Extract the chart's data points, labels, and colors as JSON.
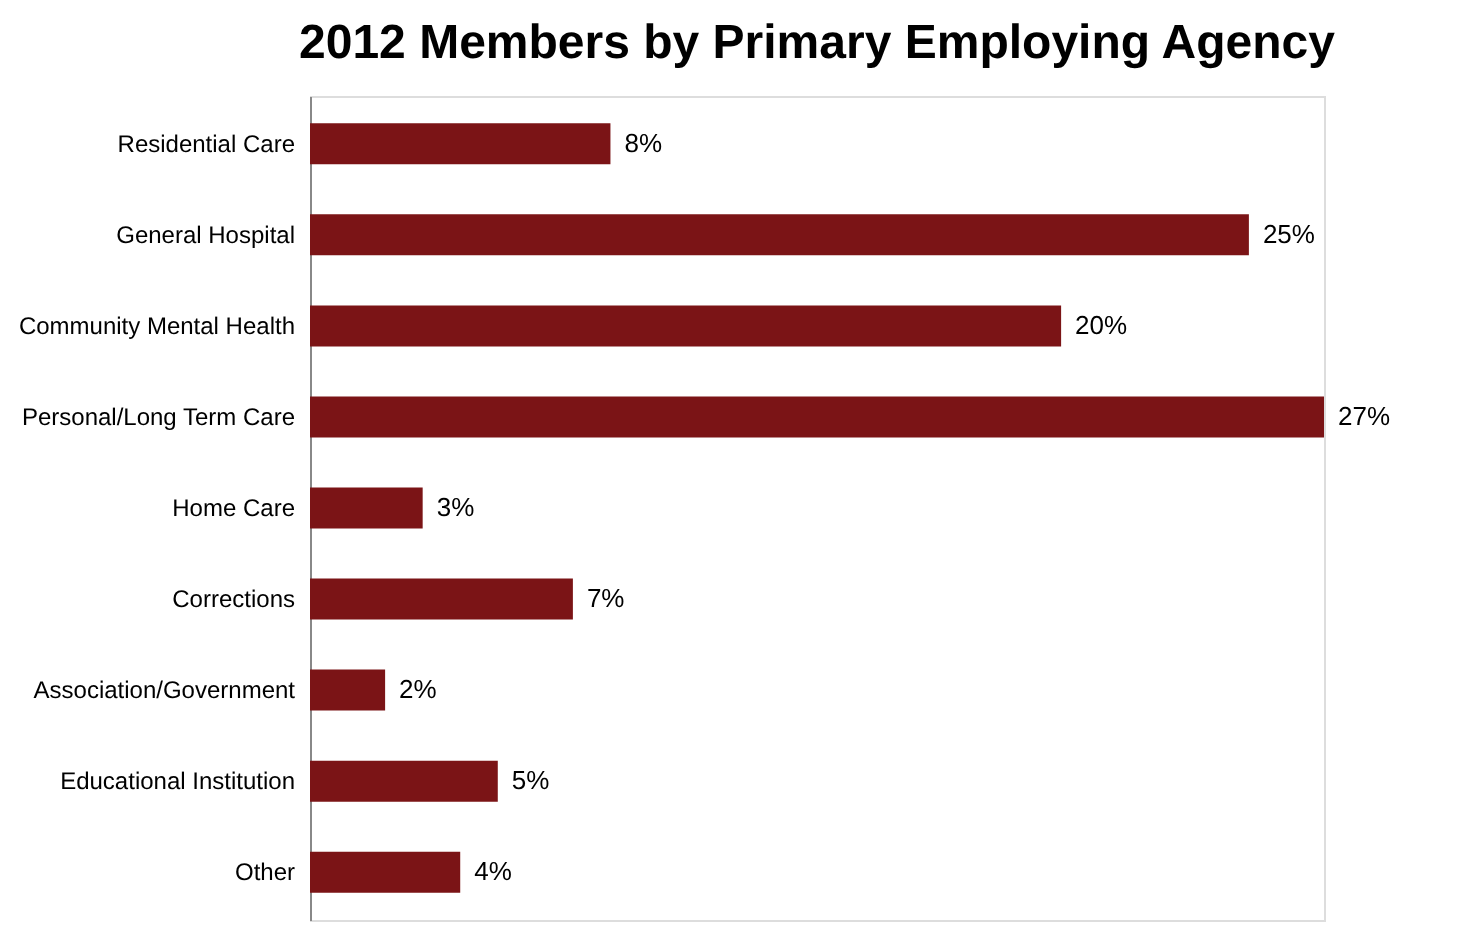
{
  "chart_data": {
    "type": "bar",
    "orientation": "horizontal",
    "title": "2012 Members by Primary Employing Agency",
    "categories": [
      "Residential Care",
      "General Hospital",
      "Community Mental Health",
      "Personal/Long Term Care",
      "Home Care",
      "Corrections",
      "Association/Government",
      "Educational Institution",
      "Other"
    ],
    "values": [
      8,
      25,
      20,
      27,
      3,
      7,
      2,
      5,
      4
    ],
    "value_labels": [
      "8%",
      "25%",
      "20%",
      "27%",
      "3%",
      "7%",
      "2%",
      "5%",
      "4%"
    ],
    "color": "#7b1416",
    "tick_labels": "y"
  }
}
